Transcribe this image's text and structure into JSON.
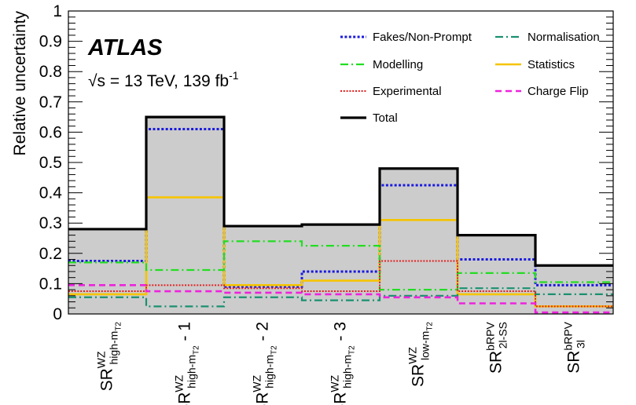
{
  "chart_data": {
    "type": "histogram",
    "ylabel": "Relative uncertainty",
    "ylim": [
      0,
      1
    ],
    "yticks": [
      "0",
      "0.1",
      "0.2",
      "0.3",
      "0.4",
      "0.5",
      "0.6",
      "0.7",
      "0.8",
      "0.9",
      "1"
    ],
    "experiment": "ATLAS",
    "energy_label": "√s = 13 TeV, 139 fb",
    "energy_label_sup": "-1",
    "categories": [
      {
        "main": "SR",
        "sup": "WZ",
        "sub": "high-m",
        "subsub": "T2",
        "suffix": ""
      },
      {
        "main": "SR",
        "sup": "WZ",
        "sub": "high-m",
        "subsub": "T2",
        "suffix": " - 1"
      },
      {
        "main": "SR",
        "sup": "WZ",
        "sub": "high-m",
        "subsub": "T2",
        "suffix": " - 2"
      },
      {
        "main": "SR",
        "sup": "WZ",
        "sub": "high-m",
        "subsub": "T2",
        "suffix": " - 3"
      },
      {
        "main": "SR",
        "sup": "WZ",
        "sub": "low-m",
        "subsub": "T2",
        "suffix": ""
      },
      {
        "main": "SR",
        "sup": "bRPV",
        "sub": "2l-SS",
        "subsub": "",
        "suffix": ""
      },
      {
        "main": "SR",
        "sup": "bRPV",
        "sub": "3l",
        "subsub": "",
        "suffix": ""
      }
    ],
    "series": [
      {
        "name": "Total",
        "color": "#000000",
        "style": "solid-thick",
        "values": [
          0.28,
          0.65,
          0.29,
          0.295,
          0.48,
          0.26,
          0.16
        ]
      },
      {
        "name": "Fakes/Non-Prompt",
        "color": "#1a1ae0",
        "style": "dotted",
        "values": [
          0.175,
          0.61,
          0.09,
          0.14,
          0.425,
          0.18,
          0.095
        ]
      },
      {
        "name": "Statistics",
        "color": "#f5c400",
        "style": "solid",
        "values": [
          0.065,
          0.385,
          0.095,
          0.11,
          0.31,
          0.065,
          0.025
        ]
      },
      {
        "name": "Modelling",
        "color": "#22dd22",
        "style": "dashdot",
        "values": [
          0.17,
          0.145,
          0.24,
          0.225,
          0.08,
          0.135,
          0.105
        ]
      },
      {
        "name": "Normalisation",
        "color": "#1a9070",
        "style": "dashdot",
        "values": [
          0.055,
          0.025,
          0.055,
          0.045,
          0.06,
          0.085,
          0.065
        ]
      },
      {
        "name": "Experimental",
        "color": "#e02020",
        "style": "dotted-fine",
        "values": [
          0.075,
          0.095,
          0.085,
          0.075,
          0.175,
          0.075,
          0.025
        ]
      },
      {
        "name": "Charge Flip",
        "color": "#ee22dd",
        "style": "dashed",
        "values": [
          0.095,
          0.075,
          0.07,
          0.065,
          0.055,
          0.035,
          0.005
        ]
      }
    ],
    "legend": {
      "placement": "top-right",
      "columns": [
        [
          "Fakes/Non-Prompt",
          "Modelling",
          "Experimental",
          "Total"
        ],
        [
          "Normalisation",
          "Statistics",
          "Charge Flip"
        ]
      ]
    },
    "grid": false,
    "total_fill_color": "#cccccc"
  }
}
